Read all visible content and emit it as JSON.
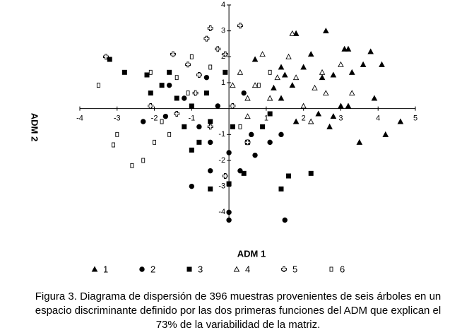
{
  "chart_data": {
    "type": "scatter",
    "xlabel": "ADM 1",
    "ylabel": "ADM 2",
    "xlim": [
      -4,
      5
    ],
    "ylim": [
      -4.4,
      4
    ],
    "xticks": [
      -4,
      -3,
      -2,
      -1,
      1,
      2,
      3,
      4,
      5
    ],
    "yticks": [
      4,
      3,
      2,
      1,
      -1,
      -2,
      -3,
      -4
    ],
    "series": [
      {
        "name": "1",
        "color": "#000000",
        "marker": "triangle",
        "filled": true,
        "x": [
          1.8,
          2.6,
          3.1,
          3.2,
          3.8,
          4.1,
          3.6,
          1.4,
          2.0,
          2.8,
          3.9,
          4.6,
          3.5,
          2.7,
          2.8,
          3.2,
          1.7,
          1.4,
          2.2,
          2.5,
          1.2,
          2.4,
          1.8,
          0.7,
          3.3,
          4.2,
          1.5,
          3.0
        ],
        "y": [
          2.9,
          3.0,
          2.3,
          2.3,
          2.2,
          1.7,
          1.7,
          1.6,
          1.6,
          1.3,
          0.4,
          -0.5,
          -1.3,
          -0.7,
          -0.3,
          0.1,
          0.9,
          0.4,
          2.1,
          1.2,
          0.8,
          -0.2,
          -0.5,
          1.9,
          1.4,
          -1.0,
          1.3,
          0.1
        ]
      },
      {
        "name": "2",
        "color": "#000000",
        "marker": "circle",
        "filled": true,
        "x": [
          0,
          1.5,
          -1.0,
          0,
          -2.3,
          -1.7,
          -0.5,
          0.3,
          0.7,
          -0.8,
          -0.3,
          -1.2,
          1.1,
          1.4,
          0.4,
          -0.6,
          0,
          0.6,
          -1.6,
          -0.5
        ],
        "y": [
          -4.3,
          -4.3,
          -3.0,
          -4.0,
          -0.5,
          -0.3,
          -1.3,
          -2.4,
          -1.8,
          -0.7,
          0.1,
          0.4,
          -1.3,
          -1.0,
          0.6,
          1.2,
          -1.7,
          -1.0,
          0.9,
          -2.4
        ]
      },
      {
        "name": "3",
        "color": "#000000",
        "marker": "square",
        "filled": true,
        "x": [
          -3.2,
          -2.8,
          -2.2,
          -2.1,
          -1.6,
          -1.4,
          -1.0,
          -0.6,
          -0.5,
          0.1,
          0.5,
          0.9,
          -0.5,
          1.6,
          2.2,
          1.4,
          0.4,
          -1.0,
          -0.1,
          1.1,
          -1.8,
          -0.8,
          0,
          -1.2
        ],
        "y": [
          1.9,
          1.4,
          1.3,
          0.6,
          1.4,
          0.4,
          0.1,
          0.6,
          -0.5,
          -0.7,
          -1.3,
          -0.7,
          -3.1,
          -2.6,
          -2.5,
          -3.1,
          -2.5,
          -1.6,
          1.4,
          -0.2,
          0.9,
          -1.3,
          -2.9,
          -0.7
        ]
      },
      {
        "name": "4",
        "color": "#000000",
        "marker": "triangle",
        "filled": false,
        "x": [
          1.7,
          0.9,
          0.3,
          0.7,
          1.1,
          1.3,
          1.6,
          2.5,
          3.0,
          3.3,
          2.0,
          2.2,
          0.5,
          1.8,
          0.5,
          2.6,
          0.1,
          2.3
        ],
        "y": [
          2.9,
          2.1,
          1.4,
          0.9,
          0.4,
          1.2,
          2.0,
          1.4,
          1.7,
          0.6,
          0.1,
          -0.5,
          -0.3,
          1.2,
          0.4,
          0.6,
          0.9,
          0.8
        ]
      },
      {
        "name": "5",
        "color": "#000000",
        "marker": "cross",
        "filled": false,
        "x": [
          -3.3,
          0.3,
          -0.6,
          -0.5,
          -0.1,
          -1.5,
          -1.1,
          -2.1,
          -1.4,
          -0.5,
          0.1,
          0.5,
          -0.1,
          -0.9,
          -0.3,
          -0.8
        ],
        "y": [
          2.0,
          3.2,
          2.7,
          3.1,
          2.1,
          2.1,
          1.7,
          0.1,
          -0.2,
          -0.7,
          0.1,
          -1.3,
          -2.6,
          0.6,
          2.3,
          1.3
        ]
      },
      {
        "name": "6",
        "color": "#000000",
        "marker": "square",
        "filled": false,
        "x": [
          -3.5,
          -3.1,
          -2.6,
          -2.3,
          -2.1,
          -1.8,
          -1.4,
          -1.1,
          -1.6,
          -1.0,
          -0.5,
          0.8,
          1.1,
          0.3,
          -3.0,
          -2.0
        ],
        "y": [
          0.9,
          -1.4,
          -2.2,
          -2.0,
          1.4,
          -0.5,
          1.2,
          0.6,
          -1.0,
          2.0,
          1.6,
          0.9,
          1.4,
          -0.7,
          -1.0,
          -1.3
        ]
      }
    ],
    "caption_lines": [
      "Figura 3. Diagrama de dispersión de 396 muestras provenientes de seis árboles en un",
      "espacio discriminante definido por las dos primeras funciones del ADM que explican el",
      "73% de la variabilidad de la matriz."
    ]
  }
}
